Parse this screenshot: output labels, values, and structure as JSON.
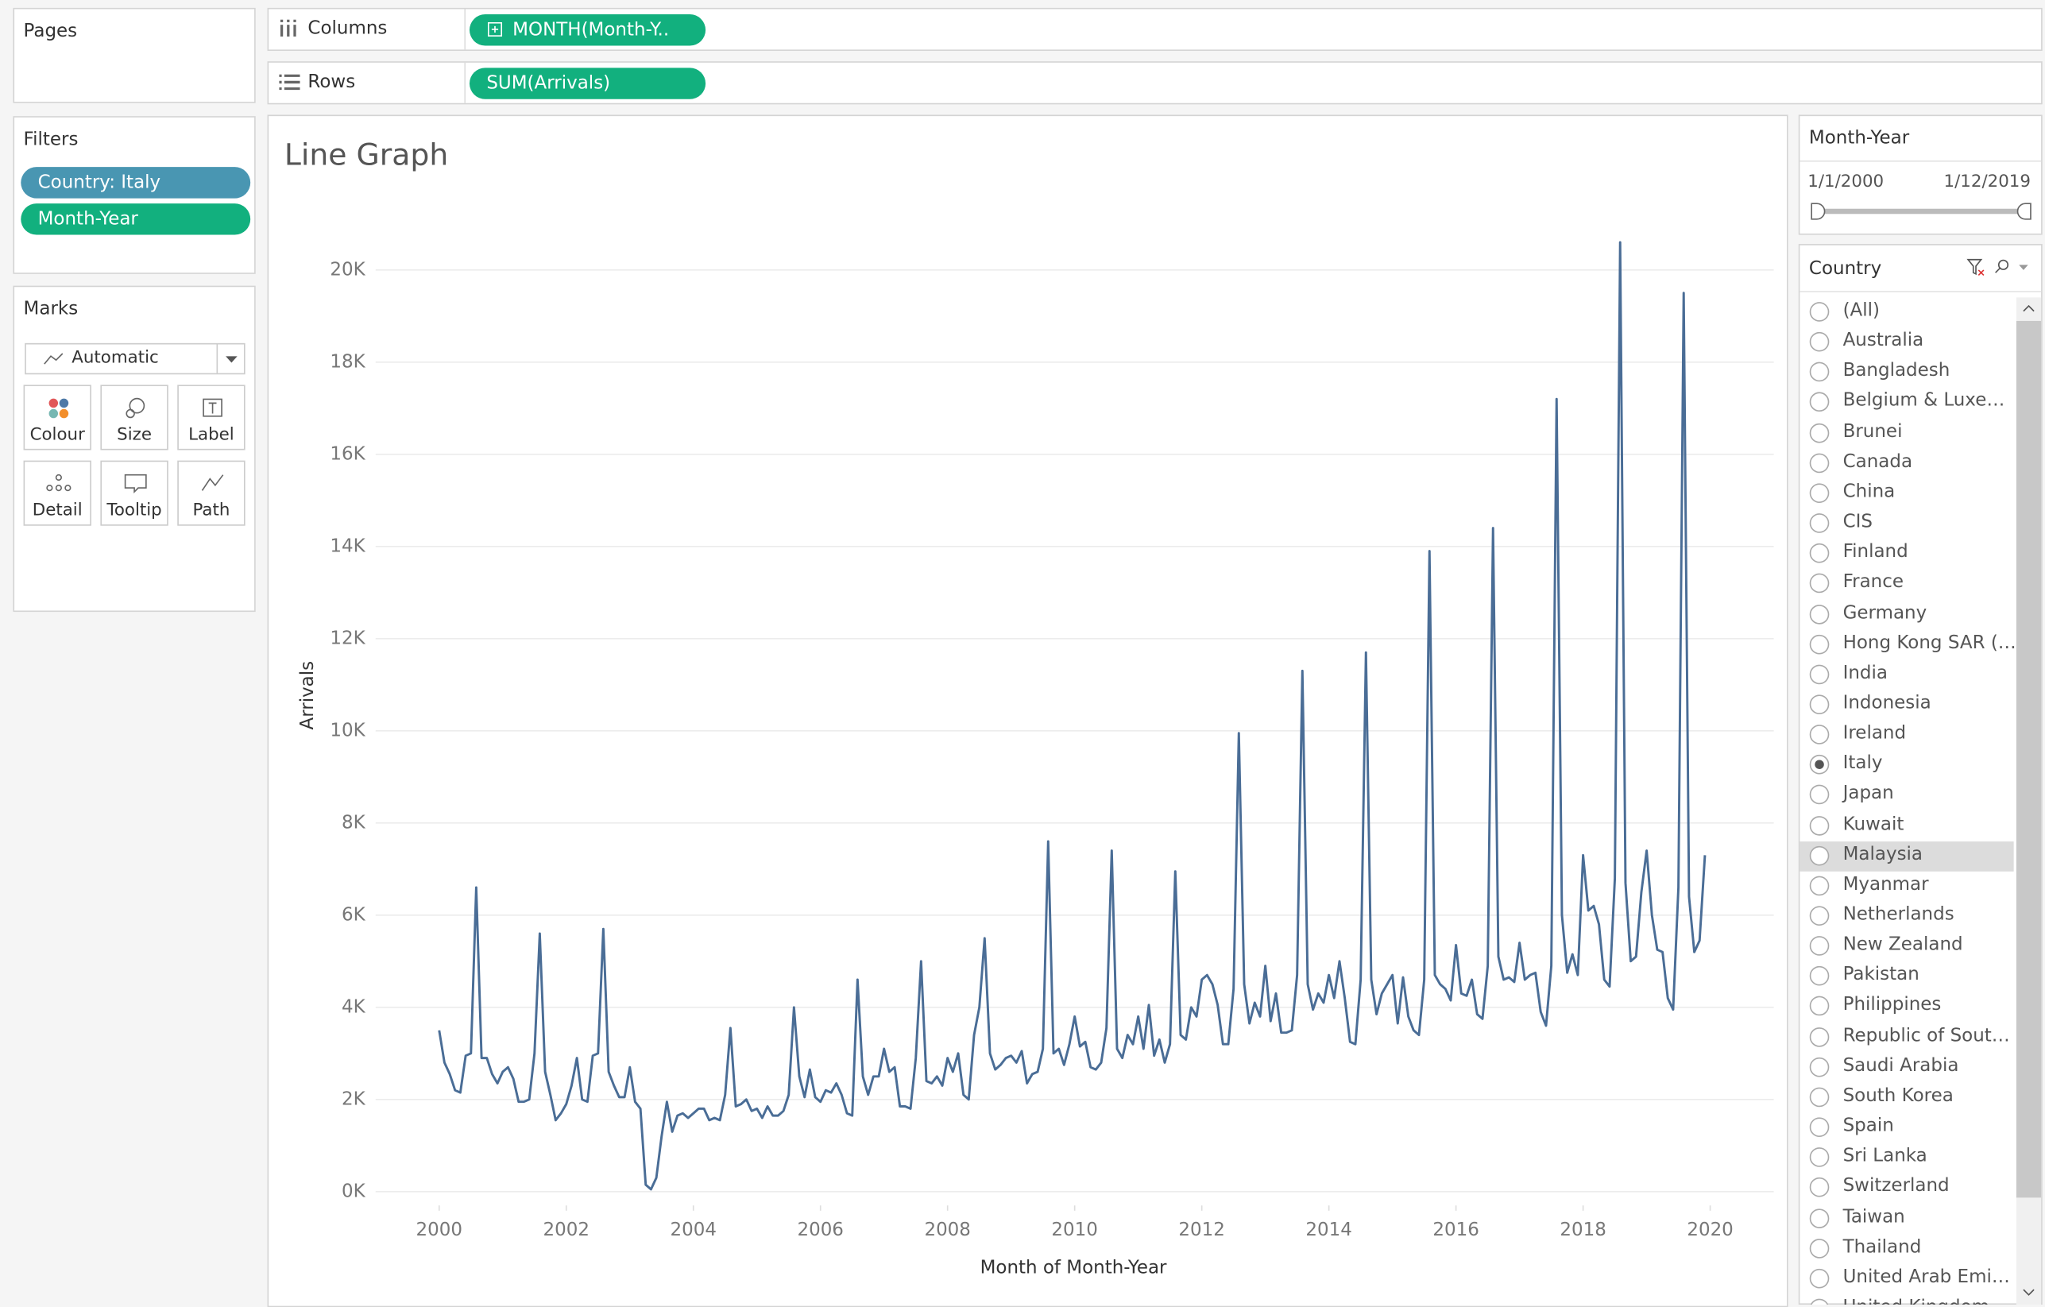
{
  "pages": {
    "title": "Pages"
  },
  "shelves": {
    "columns": {
      "label": "Columns",
      "pill": "MONTH(Month-Y.."
    },
    "rows": {
      "label": "Rows",
      "pill": "SUM(Arrivals)"
    }
  },
  "filters": {
    "title": "Filters",
    "pills": [
      {
        "text": "Country: Italy",
        "color": "#4996b2"
      },
      {
        "text": "Month-Year",
        "color": "#12b07e"
      }
    ]
  },
  "marks": {
    "title": "Marks",
    "type": "Automatic",
    "buttons": [
      "Colour",
      "Size",
      "Label",
      "Detail",
      "Tooltip",
      "Path"
    ]
  },
  "chart_data": {
    "type": "line",
    "title": "Line Graph",
    "x_label": "Month of Month-Year",
    "y_label": "Arrivals",
    "color": "#4a6d96",
    "grid": true,
    "x": [
      2000,
      2000.083,
      2000.167,
      2000.25,
      2000.333,
      2000.417,
      2000.5,
      2000.583,
      2000.667,
      2000.75,
      2000.833,
      2000.917,
      2001,
      2001.083,
      2001.167,
      2001.25,
      2001.333,
      2001.417,
      2001.5,
      2001.583,
      2001.667,
      2001.75,
      2001.833,
      2001.917,
      2002,
      2002.083,
      2002.167,
      2002.25,
      2002.333,
      2002.417,
      2002.5,
      2002.583,
      2002.667,
      2002.75,
      2002.833,
      2002.917,
      2003,
      2003.083,
      2003.167,
      2003.25,
      2003.333,
      2003.417,
      2003.5,
      2003.583,
      2003.667,
      2003.75,
      2003.833,
      2003.917,
      2004,
      2004.083,
      2004.167,
      2004.25,
      2004.333,
      2004.417,
      2004.5,
      2004.583,
      2004.667,
      2004.75,
      2004.833,
      2004.917,
      2005,
      2005.083,
      2005.167,
      2005.25,
      2005.333,
      2005.417,
      2005.5,
      2005.583,
      2005.667,
      2005.75,
      2005.833,
      2005.917,
      2006,
      2006.083,
      2006.167,
      2006.25,
      2006.333,
      2006.417,
      2006.5,
      2006.583,
      2006.667,
      2006.75,
      2006.833,
      2006.917,
      2007,
      2007.083,
      2007.167,
      2007.25,
      2007.333,
      2007.417,
      2007.5,
      2007.583,
      2007.667,
      2007.75,
      2007.833,
      2007.917,
      2008,
      2008.083,
      2008.167,
      2008.25,
      2008.333,
      2008.417,
      2008.5,
      2008.583,
      2008.667,
      2008.75,
      2008.833,
      2008.917,
      2009,
      2009.083,
      2009.167,
      2009.25,
      2009.333,
      2009.417,
      2009.5,
      2009.583,
      2009.667,
      2009.75,
      2009.833,
      2009.917,
      2010,
      2010.083,
      2010.167,
      2010.25,
      2010.333,
      2010.417,
      2010.5,
      2010.583,
      2010.667,
      2010.75,
      2010.833,
      2010.917,
      2011,
      2011.083,
      2011.167,
      2011.25,
      2011.333,
      2011.417,
      2011.5,
      2011.583,
      2011.667,
      2011.75,
      2011.833,
      2011.917,
      2012,
      2012.083,
      2012.167,
      2012.25,
      2012.333,
      2012.417,
      2012.5,
      2012.583,
      2012.667,
      2012.75,
      2012.833,
      2012.917,
      2013,
      2013.083,
      2013.167,
      2013.25,
      2013.333,
      2013.417,
      2013.5,
      2013.583,
      2013.667,
      2013.75,
      2013.833,
      2013.917,
      2014,
      2014.083,
      2014.167,
      2014.25,
      2014.333,
      2014.417,
      2014.5,
      2014.583,
      2014.667,
      2014.75,
      2014.833,
      2014.917,
      2015,
      2015.083,
      2015.167,
      2015.25,
      2015.333,
      2015.417,
      2015.5,
      2015.583,
      2015.667,
      2015.75,
      2015.833,
      2015.917,
      2016,
      2016.083,
      2016.167,
      2016.25,
      2016.333,
      2016.417,
      2016.5,
      2016.583,
      2016.667,
      2016.75,
      2016.833,
      2016.917,
      2017,
      2017.083,
      2017.167,
      2017.25,
      2017.333,
      2017.417,
      2017.5,
      2017.583,
      2017.667,
      2017.75,
      2017.833,
      2017.917,
      2018,
      2018.083,
      2018.167,
      2018.25,
      2018.333,
      2018.417,
      2018.5,
      2018.583,
      2018.667,
      2018.75,
      2018.833,
      2018.917,
      2019,
      2019.083,
      2019.167,
      2019.25,
      2019.333,
      2019.417,
      2019.5,
      2019.583,
      2019.667,
      2019.75,
      2019.833,
      2019.917
    ],
    "values": [
      3500,
      2800,
      2550,
      2200,
      2150,
      2950,
      3000,
      6600,
      2900,
      2900,
      2550,
      2350,
      2600,
      2700,
      2450,
      1950,
      1950,
      2000,
      3000,
      5600,
      2600,
      2100,
      1550,
      1700,
      1900,
      2300,
      2900,
      2000,
      1950,
      2950,
      3000,
      5700,
      2600,
      2300,
      2050,
      2050,
      2700,
      1950,
      1800,
      150,
      50,
      300,
      1200,
      1950,
      1300,
      1650,
      1700,
      1600,
      1700,
      1800,
      1800,
      1550,
      1600,
      1550,
      2100,
      3550,
      1850,
      1900,
      2000,
      1750,
      1800,
      1600,
      1850,
      1650,
      1650,
      1750,
      2100,
      4000,
      2500,
      2050,
      2650,
      2050,
      1950,
      2200,
      2150,
      2350,
      2100,
      1700,
      1650,
      4600,
      2500,
      2100,
      2500,
      2500,
      3100,
      2600,
      2700,
      1850,
      1850,
      1800,
      2900,
      5000,
      2400,
      2350,
      2500,
      2300,
      2900,
      2600,
      3000,
      2100,
      2000,
      3400,
      4000,
      5500,
      3000,
      2650,
      2750,
      2900,
      2950,
      2800,
      3050,
      2350,
      2550,
      2600,
      3100,
      7600,
      3000,
      3100,
      2750,
      3200,
      3800,
      3150,
      3250,
      2700,
      2650,
      2800,
      3550,
      7400,
      3100,
      2900,
      3400,
      3200,
      3800,
      3100,
      4050,
      2950,
      3300,
      2800,
      3200,
      6950,
      3400,
      3300,
      4000,
      3800,
      4600,
      4700,
      4500,
      4050,
      3200,
      3200,
      4400,
      9950,
      4500,
      3650,
      4100,
      3800,
      4900,
      3700,
      4300,
      3450,
      3450,
      3500,
      4700,
      11300,
      4500,
      3950,
      4300,
      4100,
      4700,
      4200,
      5000,
      4200,
      3250,
      3200,
      4600,
      11700,
      4600,
      3850,
      4300,
      4500,
      4700,
      3650,
      4650,
      3800,
      3500,
      3400,
      4600,
      13900,
      4700,
      4500,
      4400,
      4150,
      5350,
      4300,
      4250,
      4600,
      3850,
      3750,
      4900,
      14400,
      5100,
      4600,
      4650,
      4550,
      5400,
      4600,
      4700,
      4750,
      3900,
      3600,
      4900,
      17200,
      6000,
      4750,
      5150,
      4700,
      7300,
      6100,
      6200,
      5800,
      4600,
      4450,
      6800,
      20600,
      6700,
      5000,
      5100,
      6500,
      7400,
      6000,
      5250,
      5200,
      4200,
      3950,
      6600,
      19500,
      6400,
      5200,
      5450,
      7300
    ],
    "xlim": [
      1999,
      2021
    ],
    "xticks": [
      2000,
      2002,
      2004,
      2006,
      2008,
      2010,
      2012,
      2014,
      2016,
      2018,
      2020
    ],
    "ylim": [
      -300,
      21300
    ],
    "yticks": [
      {
        "value": 0,
        "label": "0K"
      },
      {
        "value": 2000,
        "label": "2K"
      },
      {
        "value": 4000,
        "label": "4K"
      },
      {
        "value": 6000,
        "label": "6K"
      },
      {
        "value": 8000,
        "label": "8K"
      },
      {
        "value": 10000,
        "label": "10K"
      },
      {
        "value": 12000,
        "label": "12K"
      },
      {
        "value": 14000,
        "label": "14K"
      },
      {
        "value": 16000,
        "label": "16K"
      },
      {
        "value": 18000,
        "label": "18K"
      },
      {
        "value": 20000,
        "label": "20K"
      }
    ]
  },
  "date_filter": {
    "title": "Month-Year",
    "start": "1/1/2000",
    "end": "1/12/2019"
  },
  "country_filter": {
    "title": "Country",
    "selected_index": 15,
    "highlighted_index": 18,
    "options": [
      "(All)",
      "Australia",
      "Bangladesh",
      "Belgium & Luxe…",
      "Brunei",
      "Canada",
      "China",
      "CIS",
      "Finland",
      "France",
      "Germany",
      "Hong Kong SAR (…",
      "India",
      "Indonesia",
      "Ireland",
      "Italy",
      "Japan",
      "Kuwait",
      "Malaysia",
      "Myanmar",
      "Netherlands",
      "New Zealand",
      "Pakistan",
      "Philippines",
      "Republic of Sout…",
      "Saudi Arabia",
      "South Korea",
      "Spain",
      "Sri Lanka",
      "Switzerland",
      "Taiwan",
      "Thailand",
      "United Arab Emi…",
      "United Kingdom"
    ]
  }
}
